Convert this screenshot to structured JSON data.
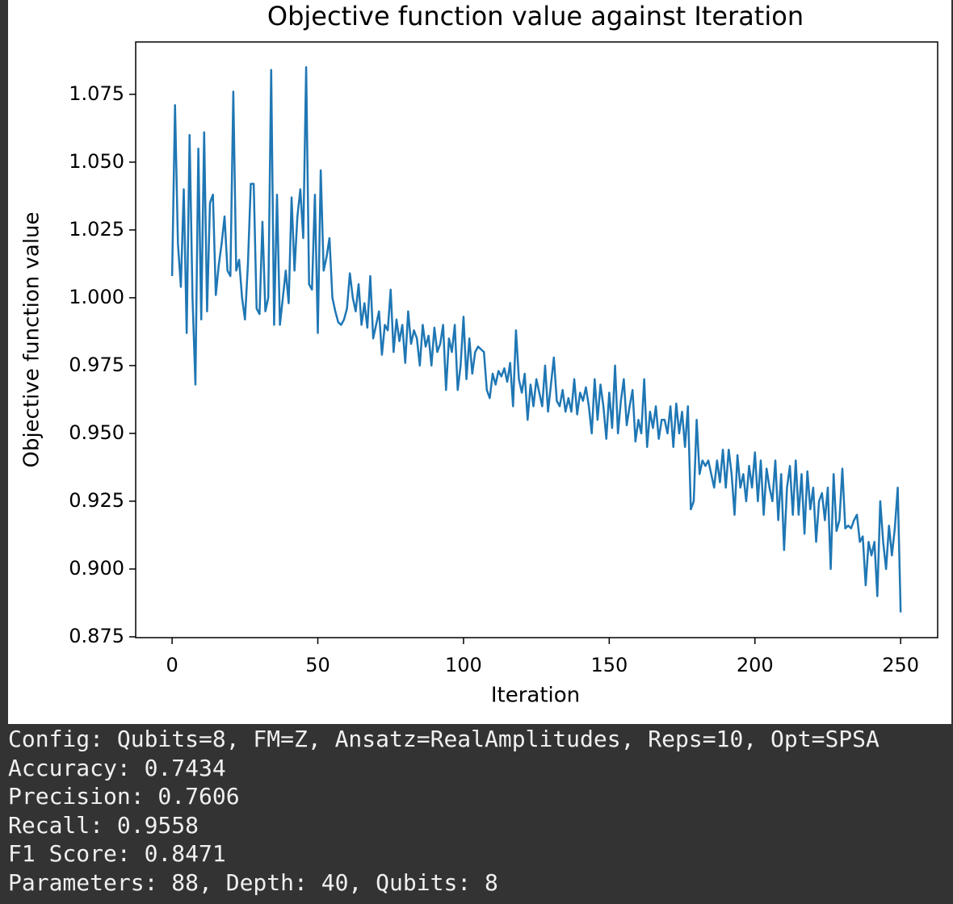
{
  "chart_data": {
    "type": "line",
    "title": "Objective function value against Iteration",
    "x_label": "Iteration",
    "y_label": "Objective function value",
    "color": "#1f77b4",
    "xlim": [
      -12.5,
      262.7
    ],
    "ylim": [
      0.8747,
      1.0943
    ],
    "xticks": [
      0,
      50,
      100,
      150,
      200,
      250
    ],
    "yticks": [
      0.875,
      {
        "value": 0.9,
        "label": "0.900"
      },
      0.925,
      {
        "value": 0.95,
        "label": "0.950"
      },
      0.975,
      {
        "value": 1,
        "label": "1.000"
      },
      1.025,
      {
        "value": 1.05,
        "label": "1.050"
      },
      1.075
    ],
    "x": [
      0,
      1,
      2,
      3,
      4,
      5,
      6,
      7,
      8,
      9,
      10,
      11,
      12,
      13,
      14,
      15,
      16,
      17,
      18,
      19,
      20,
      21,
      22,
      23,
      24,
      25,
      26,
      27,
      28,
      29,
      30,
      31,
      32,
      33,
      34,
      35,
      36,
      37,
      38,
      39,
      40,
      41,
      42,
      43,
      44,
      45,
      46,
      47,
      48,
      49,
      50,
      51,
      52,
      53,
      54,
      55,
      56,
      57,
      58,
      59,
      60,
      61,
      62,
      63,
      64,
      65,
      66,
      67,
      68,
      69,
      70,
      71,
      72,
      73,
      74,
      75,
      76,
      77,
      78,
      79,
      80,
      81,
      82,
      83,
      84,
      85,
      86,
      87,
      88,
      89,
      90,
      91,
      92,
      93,
      94,
      95,
      96,
      97,
      98,
      99,
      100,
      101,
      102,
      103,
      104,
      105,
      106,
      107,
      108,
      109,
      110,
      111,
      112,
      113,
      114,
      115,
      116,
      117,
      118,
      119,
      120,
      121,
      122,
      123,
      124,
      125,
      126,
      127,
      128,
      129,
      130,
      131,
      132,
      133,
      134,
      135,
      136,
      137,
      138,
      139,
      140,
      141,
      142,
      143,
      144,
      145,
      146,
      147,
      148,
      149,
      150,
      151,
      152,
      153,
      154,
      155,
      156,
      157,
      158,
      159,
      160,
      161,
      162,
      163,
      164,
      165,
      166,
      167,
      168,
      169,
      170,
      171,
      172,
      173,
      174,
      175,
      176,
      177,
      178,
      179,
      180,
      181,
      182,
      183,
      184,
      185,
      186,
      187,
      188,
      189,
      190,
      191,
      192,
      193,
      194,
      195,
      196,
      197,
      198,
      199,
      200,
      201,
      202,
      203,
      204,
      205,
      206,
      207,
      208,
      209,
      210,
      211,
      212,
      213,
      214,
      215,
      216,
      217,
      218,
      219,
      220,
      221,
      222,
      223,
      224,
      225,
      226,
      227,
      228,
      229,
      230,
      231,
      232,
      233,
      234,
      235,
      236,
      237,
      238,
      239,
      240,
      241,
      242,
      243,
      244,
      245,
      246,
      247,
      248,
      249,
      250
    ],
    "values": [
      1.008,
      1.071,
      1.02,
      1.004,
      1.04,
      0.987,
      1.06,
      1.0,
      0.968,
      1.055,
      0.992,
      1.061,
      0.995,
      1.035,
      1.038,
      1.001,
      1.012,
      1.02,
      1.03,
      1.01,
      1.008,
      1.076,
      1.01,
      1.014,
      1.0,
      0.992,
      1.012,
      1.042,
      1.042,
      0.996,
      0.994,
      1.028,
      0.995,
      1.0,
      1.084,
      0.99,
      1.038,
      0.99,
      1.0,
      1.01,
      0.998,
      1.037,
      1.01,
      1.03,
      1.04,
      1.022,
      1.085,
      1.005,
      1.003,
      1.038,
      0.987,
      1.047,
      1.01,
      1.015,
      1.022,
      1.0,
      0.995,
      0.991,
      0.99,
      0.992,
      0.996,
      1.009,
      1.0,
      0.995,
      1.005,
      0.99,
      0.998,
      0.989,
      1.008,
      0.985,
      0.99,
      0.995,
      0.979,
      0.99,
      0.988,
      1.003,
      0.98,
      0.992,
      0.984,
      0.99,
      0.976,
      0.995,
      0.983,
      0.988,
      0.985,
      0.975,
      0.99,
      0.982,
      0.986,
      0.975,
      0.989,
      0.98,
      0.983,
      0.99,
      0.966,
      0.985,
      0.98,
      0.99,
      0.966,
      0.975,
      0.993,
      0.97,
      0.985,
      0.972,
      0.98,
      0.982,
      0.981,
      0.98,
      0.966,
      0.963,
      0.972,
      0.968,
      0.973,
      0.971,
      0.974,
      0.969,
      0.976,
      0.96,
      0.988,
      0.97,
      0.965,
      0.972,
      0.955,
      0.968,
      0.96,
      0.97,
      0.965,
      0.96,
      0.975,
      0.958,
      0.968,
      0.978,
      0.962,
      0.96,
      0.966,
      0.958,
      0.963,
      0.958,
      0.97,
      0.957,
      0.965,
      0.962,
      0.967,
      0.96,
      0.95,
      0.97,
      0.955,
      0.968,
      0.96,
      0.948,
      0.965,
      0.952,
      0.975,
      0.95,
      0.962,
      0.97,
      0.953,
      0.96,
      0.966,
      0.947,
      0.955,
      0.95,
      0.97,
      0.945,
      0.958,
      0.952,
      0.96,
      0.948,
      0.955,
      0.955,
      0.95,
      0.96,
      0.945,
      0.961,
      0.95,
      0.958,
      0.945,
      0.96,
      0.922,
      0.925,
      0.955,
      0.935,
      0.94,
      0.938,
      0.94,
      0.935,
      0.93,
      0.94,
      0.932,
      0.944,
      0.93,
      0.944,
      0.935,
      0.92,
      0.942,
      0.93,
      0.935,
      0.925,
      0.938,
      0.93,
      0.943,
      0.925,
      0.94,
      0.92,
      0.937,
      0.93,
      0.925,
      0.94,
      0.918,
      0.935,
      0.907,
      0.93,
      0.938,
      0.92,
      0.94,
      0.92,
      0.935,
      0.913,
      0.936,
      0.922,
      0.93,
      0.91,
      0.925,
      0.928,
      0.918,
      0.93,
      0.9,
      0.935,
      0.914,
      0.918,
      0.937,
      0.915,
      0.916,
      0.915,
      0.918,
      0.92,
      0.91,
      0.912,
      0.894,
      0.91,
      0.905,
      0.91,
      0.89,
      0.925,
      0.91,
      0.9,
      0.916,
      0.905,
      0.915,
      0.93,
      0.884
    ]
  },
  "output": {
    "lines": [
      "Config: Qubits=8, FM=Z, Ansatz=RealAmplitudes, Reps=10, Opt=SPSA",
      "Accuracy: 0.7434",
      "Precision: 0.7606",
      "Recall: 0.9558",
      "F1 Score: 0.8471",
      "Parameters: 88, Depth: 40, Qubits: 8"
    ]
  }
}
